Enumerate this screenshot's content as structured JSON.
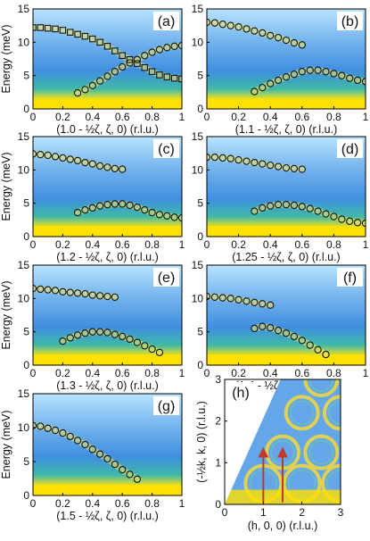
{
  "figure": {
    "ylabel": "Energy (meV)",
    "colors": {
      "bg_low": "#b8e3ff",
      "bg_mid": "#4f96e0",
      "bg_band": "#41b8a6",
      "elastic": "#ffe000",
      "elastic_edge": "#c8d840",
      "marker": "#111111",
      "arrow": "#c0392b"
    }
  },
  "chart_data": [
    {
      "label": "(a)",
      "type": "scatter",
      "xlabel": "(1.0 - ½ζ, ζ, 0) (r.l.u.)",
      "ylabel": "Energy (meV)",
      "xlim": [
        0,
        1
      ],
      "ylim": [
        0,
        15
      ],
      "xticks": [
        "0",
        "0.2",
        "0.4",
        "0.6",
        "0.8",
        "1"
      ],
      "yticks": [
        "0",
        "5",
        "10",
        "15"
      ],
      "series": [
        {
          "marker": "square",
          "x": [
            0.0,
            0.05,
            0.1,
            0.15,
            0.2,
            0.25,
            0.3,
            0.35,
            0.4,
            0.45,
            0.5,
            0.55,
            0.6,
            0.65,
            0.7,
            0.75,
            0.8,
            0.85,
            0.9,
            0.95,
            1.0
          ],
          "y": [
            12.2,
            12.2,
            12.1,
            12.0,
            11.8,
            11.5,
            11.2,
            10.9,
            10.5,
            10.0,
            9.4,
            8.7,
            8.0,
            7.4,
            6.8,
            6.2,
            5.6,
            5.1,
            4.8,
            4.6,
            4.5
          ]
        },
        {
          "marker": "circle",
          "x": [
            0.3,
            0.35,
            0.4,
            0.45,
            0.5,
            0.55,
            0.6,
            0.65,
            0.7,
            0.75,
            0.8,
            0.85,
            0.9,
            0.95,
            1.0
          ],
          "y": [
            2.4,
            2.9,
            3.5,
            4.2,
            4.9,
            5.6,
            6.3,
            6.9,
            7.4,
            8.0,
            8.5,
            8.9,
            9.2,
            9.4,
            9.5
          ]
        }
      ]
    },
    {
      "label": "(b)",
      "type": "scatter",
      "xlabel": "(1.1 - ½ζ, ζ, 0) (r.l.u.)",
      "ylabel": "",
      "xlim": [
        0,
        1
      ],
      "ylim": [
        0,
        15
      ],
      "xticks": [
        "0",
        "0.2",
        "0.4",
        "0.6",
        "0.8",
        "1"
      ],
      "yticks": [
        "0",
        "5",
        "10",
        "15"
      ],
      "series": [
        {
          "marker": "circle",
          "x": [
            0.0,
            0.05,
            0.1,
            0.15,
            0.2,
            0.25,
            0.3,
            0.35,
            0.4,
            0.45,
            0.5,
            0.55,
            0.6
          ],
          "y": [
            13.0,
            12.9,
            12.7,
            12.5,
            12.3,
            12.0,
            11.7,
            11.4,
            11.0,
            10.7,
            10.3,
            9.9,
            9.6
          ]
        },
        {
          "marker": "circle",
          "x": [
            0.3,
            0.35,
            0.4,
            0.45,
            0.5,
            0.55,
            0.6,
            0.65,
            0.7,
            0.75,
            0.8,
            0.85,
            0.9,
            0.95,
            1.0
          ],
          "y": [
            2.6,
            3.2,
            3.8,
            4.3,
            4.8,
            5.2,
            5.6,
            5.8,
            5.8,
            5.6,
            5.3,
            5.0,
            4.6,
            4.3,
            4.1
          ]
        }
      ]
    },
    {
      "label": "(c)",
      "type": "scatter",
      "xlabel": "(1.2 - ½ζ, ζ, 0) (r.l.u.)",
      "ylabel": "Energy (meV)",
      "xlim": [
        0,
        1
      ],
      "ylim": [
        0,
        15
      ],
      "xticks": [
        "0",
        "0.2",
        "0.4",
        "0.6",
        "0.8",
        "1"
      ],
      "yticks": [
        "0",
        "5",
        "10",
        "15"
      ],
      "series": [
        {
          "marker": "circle",
          "x": [
            0.0,
            0.05,
            0.1,
            0.15,
            0.2,
            0.25,
            0.3,
            0.35,
            0.4,
            0.45,
            0.5,
            0.55,
            0.6
          ],
          "y": [
            12.4,
            12.3,
            12.2,
            12.0,
            11.8,
            11.6,
            11.4,
            11.1,
            10.9,
            10.6,
            10.4,
            10.2,
            10.1
          ]
        },
        {
          "marker": "circle",
          "x": [
            0.3,
            0.35,
            0.4,
            0.45,
            0.5,
            0.55,
            0.6,
            0.65,
            0.7,
            0.75,
            0.8,
            0.85,
            0.9,
            0.95,
            1.0
          ],
          "y": [
            3.6,
            4.0,
            4.3,
            4.6,
            4.8,
            4.9,
            4.9,
            4.7,
            4.4,
            4.0,
            3.6,
            3.3,
            3.1,
            2.9,
            2.8
          ]
        }
      ]
    },
    {
      "label": "(d)",
      "type": "scatter",
      "xlabel": "(1.25 - ½ζ, ζ, 0) (r.l.u.)",
      "ylabel": "",
      "xlim": [
        0,
        1
      ],
      "ylim": [
        0,
        15
      ],
      "xticks": [
        "0",
        "0.2",
        "0.4",
        "0.6",
        "0.8",
        "1"
      ],
      "yticks": [
        "0",
        "5",
        "10",
        "15"
      ],
      "series": [
        {
          "marker": "circle",
          "x": [
            0.0,
            0.05,
            0.1,
            0.15,
            0.2,
            0.25,
            0.3,
            0.35,
            0.4,
            0.45,
            0.5,
            0.55,
            0.6
          ],
          "y": [
            11.9,
            11.9,
            11.8,
            11.7,
            11.5,
            11.3,
            11.1,
            10.9,
            10.7,
            10.5,
            10.3,
            10.2,
            10.1
          ]
        },
        {
          "marker": "circle",
          "x": [
            0.3,
            0.35,
            0.4,
            0.45,
            0.5,
            0.55,
            0.6,
            0.65,
            0.7,
            0.75,
            0.8,
            0.85,
            0.9,
            0.95,
            1.0
          ],
          "y": [
            3.8,
            4.3,
            4.6,
            4.8,
            4.8,
            4.7,
            4.5,
            4.2,
            3.8,
            3.4,
            3.0,
            2.6,
            2.3,
            2.1,
            2.0
          ]
        }
      ]
    },
    {
      "label": "(e)",
      "type": "scatter",
      "xlabel": "(1.3 - ½ζ, ζ, 0) (r.l.u.)",
      "ylabel": "Energy (meV)",
      "xlim": [
        0,
        1
      ],
      "ylim": [
        0,
        15
      ],
      "xticks": [
        "0",
        "0.2",
        "0.4",
        "0.6",
        "0.8",
        "1"
      ],
      "yticks": [
        "0",
        "5",
        "10",
        "15"
      ],
      "series": [
        {
          "marker": "circle",
          "x": [
            0.0,
            0.05,
            0.1,
            0.15,
            0.2,
            0.25,
            0.3,
            0.35,
            0.4,
            0.45,
            0.5,
            0.55
          ],
          "y": [
            11.5,
            11.4,
            11.3,
            11.2,
            11.0,
            10.9,
            10.8,
            10.7,
            10.5,
            10.4,
            10.3,
            10.2
          ]
        },
        {
          "marker": "circle",
          "x": [
            0.2,
            0.25,
            0.3,
            0.35,
            0.4,
            0.45,
            0.5,
            0.55,
            0.6,
            0.65,
            0.7,
            0.75,
            0.8,
            0.85
          ],
          "y": [
            3.6,
            4.1,
            4.5,
            4.8,
            5.0,
            5.0,
            4.9,
            4.6,
            4.3,
            3.9,
            3.4,
            2.9,
            2.4,
            1.9
          ]
        }
      ]
    },
    {
      "label": "(f)",
      "type": "scatter",
      "xlabel": "(1.4 - ½ζ, ζ, 0) (r.l.u.)",
      "ylabel": "",
      "xlim": [
        0,
        1
      ],
      "ylim": [
        0,
        15
      ],
      "xticks": [
        "0",
        "0.2",
        "0.4",
        "0.6",
        "0.8",
        "1"
      ],
      "yticks": [
        "0",
        "5",
        "10",
        "15"
      ],
      "series": [
        {
          "marker": "circle",
          "x": [
            0.0,
            0.05,
            0.1,
            0.15,
            0.2,
            0.25,
            0.3,
            0.35,
            0.4
          ],
          "y": [
            10.3,
            10.2,
            10.1,
            10.0,
            9.8,
            9.6,
            9.4,
            9.2,
            9.0
          ]
        },
        {
          "marker": "circle",
          "x": [
            0.3,
            0.35,
            0.4,
            0.45,
            0.5,
            0.55,
            0.6,
            0.65,
            0.7,
            0.75
          ],
          "y": [
            5.5,
            5.8,
            5.6,
            5.2,
            4.8,
            4.3,
            3.7,
            3.0,
            2.3,
            1.6
          ]
        }
      ]
    },
    {
      "label": "(g)",
      "type": "scatter",
      "xlabel": "(1.5 - ½ζ, ζ, 0) (r.l.u.)",
      "ylabel": "Energy (meV)",
      "xlim": [
        0,
        1
      ],
      "ylim": [
        0,
        15
      ],
      "xticks": [
        "0",
        "0.2",
        "0.4",
        "0.6",
        "0.8",
        "1"
      ],
      "yticks": [
        "0",
        "5",
        "10",
        "15"
      ],
      "series": [
        {
          "marker": "circle",
          "x": [
            0.0,
            0.05,
            0.1,
            0.15,
            0.2,
            0.25,
            0.3,
            0.35,
            0.4,
            0.45,
            0.5,
            0.55,
            0.6,
            0.65,
            0.7
          ],
          "y": [
            10.3,
            10.2,
            9.9,
            9.6,
            9.2,
            8.7,
            8.1,
            7.5,
            6.8,
            6.1,
            5.4,
            4.6,
            3.8,
            3.1,
            2.4
          ]
        }
      ]
    },
    {
      "label": "(h)",
      "type": "heatmap",
      "xlabel": "(h, 0, 0) (r.l.u.)",
      "ylabel": "(-½k, k, 0) (r.l.u.)",
      "xlim": [
        0,
        3
      ],
      "ylim": [
        0,
        3
      ],
      "xticks": [
        "0",
        "1",
        "2",
        "3"
      ],
      "yticks": [
        "0",
        "1",
        "2",
        "3"
      ],
      "arrows_at_h": [
        1.0,
        1.5
      ]
    }
  ]
}
